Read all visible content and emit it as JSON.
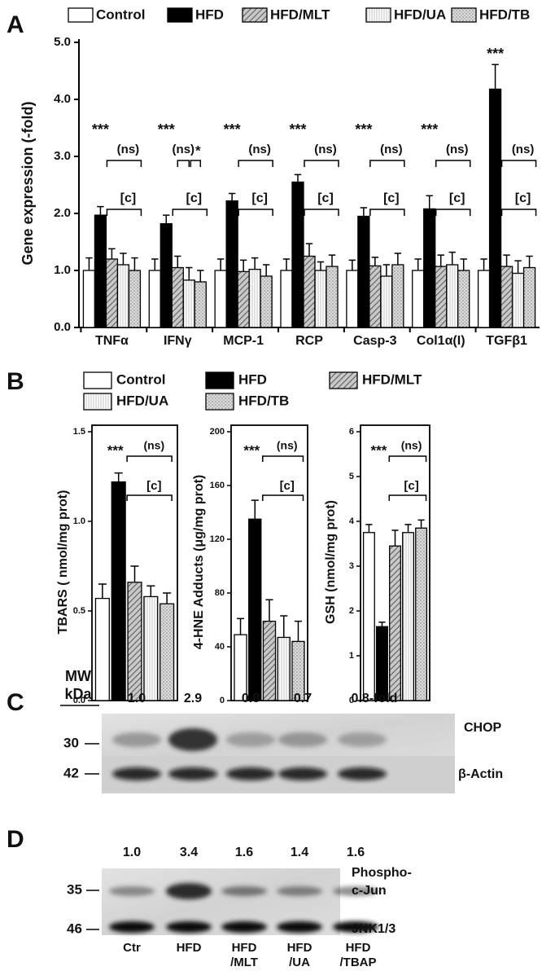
{
  "chart_data": [
    {
      "type": "bar",
      "panel": "A",
      "ylabel": "Gene expression (-fold)",
      "categories": [
        "TNFα",
        "IFNγ",
        "MCP-1",
        "RCP",
        "Casp-3",
        "Col1α(I)",
        "TGFβ1"
      ],
      "series": [
        {
          "name": "Control",
          "color": "white",
          "values": [
            1.0,
            1.0,
            1.0,
            1.0,
            1.0,
            1.0,
            1.0
          ],
          "errors": [
            0.22,
            0.2,
            0.2,
            0.2,
            0.18,
            0.2,
            0.2
          ]
        },
        {
          "name": "HFD",
          "color": "black",
          "values": [
            1.97,
            1.82,
            2.22,
            2.55,
            1.95,
            2.08,
            4.18
          ],
          "errors": [
            0.15,
            0.15,
            0.13,
            0.13,
            0.15,
            0.23,
            0.43
          ]
        },
        {
          "name": "HFD/MLT",
          "color": "hatch",
          "values": [
            1.2,
            1.05,
            0.98,
            1.25,
            1.08,
            1.07,
            1.07
          ],
          "errors": [
            0.18,
            0.2,
            0.2,
            0.22,
            0.15,
            0.2,
            0.2
          ]
        },
        {
          "name": "HFD/UA",
          "color": "stripes",
          "values": [
            1.1,
            0.83,
            1.02,
            1.0,
            0.9,
            1.1,
            0.95
          ],
          "errors": [
            0.2,
            0.22,
            0.2,
            0.15,
            0.2,
            0.22,
            0.22
          ]
        },
        {
          "name": "HFD/TB",
          "color": "dots",
          "values": [
            1.0,
            0.8,
            0.9,
            1.07,
            1.1,
            1.0,
            1.05
          ],
          "errors": [
            0.22,
            0.2,
            0.2,
            0.2,
            0.2,
            0.2,
            0.2
          ]
        }
      ],
      "annotations": [
        {
          "hfd": "***",
          "ns": "(ns)",
          "c": "[c]"
        },
        {
          "hfd": "***",
          "ns": "(ns)",
          "star": "*",
          "c": "[c]"
        },
        {
          "hfd": "***",
          "ns": "(ns)",
          "c": "[c]"
        },
        {
          "hfd": "***",
          "ns": "(ns)",
          "c": "[c]"
        },
        {
          "hfd": "***",
          "ns": "(ns)",
          "c": "[c]"
        },
        {
          "hfd": "***",
          "ns": "(ns)",
          "c": "[c]"
        },
        {
          "hfd": "***",
          "ns": "(ns)",
          "c": "[c]"
        }
      ],
      "ylim": [
        0,
        5
      ],
      "yticks": [
        {
          "value": 0,
          "label": "0.0"
        },
        {
          "value": 1,
          "label": "1.0"
        },
        {
          "value": 2,
          "label": "2.0"
        },
        {
          "value": 3,
          "label": "3.0"
        },
        {
          "value": 4,
          "label": "4.0"
        },
        {
          "value": 5,
          "label": "5.0"
        }
      ]
    },
    {
      "type": "bar-group",
      "panel": "B",
      "legend": [
        {
          "name": "Control",
          "color": "white"
        },
        {
          "name": "HFD",
          "color": "black"
        },
        {
          "name": "HFD/MLT",
          "color": "hatch"
        },
        {
          "name": "HFD/UA",
          "color": "stripes"
        },
        {
          "name": "HFD/TB",
          "color": "dots"
        }
      ],
      "charts": [
        {
          "ylabel": "TBARS ( nmol/mg prot)",
          "values": [
            0.57,
            1.22,
            0.66,
            0.58,
            0.54
          ],
          "errors": [
            0.08,
            0.05,
            0.09,
            0.06,
            0.06
          ],
          "ylim": [
            0,
            1.5
          ],
          "yticks": [
            {
              "value": 0,
              "label": "0.0"
            },
            {
              "value": 0.5,
              "label": "0.5"
            },
            {
              "value": 1,
              "label": "1.0"
            },
            {
              "value": 1.5,
              "label": "1.5"
            }
          ],
          "annotations": {
            "hfd": "***",
            "ns": "(ns)",
            "c": "[c]"
          }
        },
        {
          "ylabel": "4-HNE Adducts (μg/mg prot)",
          "values": [
            49,
            135,
            59,
            47,
            44
          ],
          "errors": [
            12,
            14,
            16,
            16,
            15
          ],
          "ylim": [
            0,
            200
          ],
          "yticks": [
            0,
            40,
            80,
            120,
            160,
            200
          ],
          "annotations": {
            "hfd": "***",
            "ns": "(ns)",
            "c": "[c]"
          }
        },
        {
          "ylabel": "GSH (nmol/mg prot)",
          "values": [
            3.75,
            1.65,
            3.45,
            3.75,
            3.85
          ],
          "errors": [
            0.18,
            0.1,
            0.35,
            0.18,
            0.18
          ],
          "ylim": [
            0,
            6
          ],
          "yticks": [
            0,
            1,
            2,
            3,
            4,
            5,
            6
          ],
          "annotations": {
            "hfd": "***",
            "ns": "(ns)",
            "c": "[c]"
          }
        }
      ]
    }
  ],
  "panel_c": {
    "letter": "C",
    "mw": "MW",
    "kda": "kDa",
    "folds": [
      "1.0",
      "2.9",
      "0.8",
      "0.7",
      "0.8-fold"
    ],
    "markers": [
      "30",
      "42"
    ],
    "proteins": [
      "CHOP",
      "β-Actin"
    ]
  },
  "panel_d": {
    "letter": "D",
    "folds": [
      "1.0",
      "3.4",
      "1.6",
      "1.4",
      "1.6"
    ],
    "markers": [
      "35",
      "46"
    ],
    "proteins": [
      [
        "Phospho-",
        "c-Jun"
      ],
      [
        "JNK1/3"
      ]
    ],
    "lanes": [
      [
        "Ctr"
      ],
      [
        "HFD"
      ],
      [
        "HFD",
        "/MLT"
      ],
      [
        "HFD",
        "/UA"
      ],
      [
        "HFD",
        "/TBAP"
      ]
    ]
  }
}
